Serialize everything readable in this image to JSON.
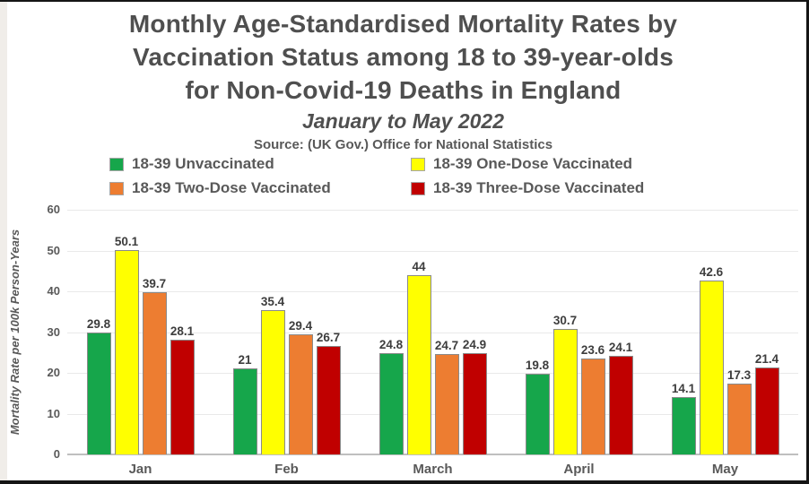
{
  "header": {
    "title_lines": [
      "Monthly Age-Standardised Mortality Rates by",
      "Vaccination Status among 18 to 39-year-olds",
      "for Non-Covid-19 Deaths in England"
    ],
    "subtitle": "January to May 2022",
    "source": "Source: (UK Gov.) Office for National Statistics"
  },
  "legend": {
    "items": [
      {
        "label": "18-39 Unvaccinated",
        "color": "#16a64b"
      },
      {
        "label": "18-39 One-Dose Vaccinated",
        "color": "#ffff00"
      },
      {
        "label": "18-39 Two-Dose Vaccinated",
        "color": "#ed7d31"
      },
      {
        "label": "18-39 Three-Dose Vaccinated",
        "color": "#c00000"
      }
    ]
  },
  "chart_data": {
    "type": "bar",
    "title": "Monthly Age-Standardised Mortality Rates by Vaccination Status among 18 to 39-year-olds for Non-Covid-19 Deaths in England",
    "subtitle": "January to May 2022",
    "source": "Source: (UK Gov.) Office for National Statistics",
    "categories": [
      "Jan",
      "Feb",
      "March",
      "April",
      "May"
    ],
    "series": [
      {
        "name": "18-39 Unvaccinated",
        "color": "#16a64b",
        "values": [
          29.8,
          21,
          24.8,
          19.8,
          14.1
        ],
        "labels": [
          "29.8",
          "21",
          "24.8",
          "19.8",
          "14.1"
        ]
      },
      {
        "name": "18-39 One-Dose Vaccinated",
        "color": "#ffff00",
        "values": [
          50.1,
          35.4,
          44,
          30.7,
          42.6
        ],
        "labels": [
          "50.1",
          "35.4",
          "44",
          "30.7",
          "42.6"
        ]
      },
      {
        "name": "18-39 Two-Dose Vaccinated",
        "color": "#ed7d31",
        "values": [
          39.7,
          29.4,
          24.7,
          23.6,
          17.3
        ],
        "labels": [
          "39.7",
          "29.4",
          "24.7",
          "23.6",
          "17.3"
        ]
      },
      {
        "name": "18-39 Three-Dose Vaccinated",
        "color": "#c00000",
        "values": [
          28.1,
          26.7,
          24.9,
          24.1,
          21.4
        ],
        "labels": [
          "28.1",
          "26.7",
          "24.9",
          "24.1",
          "21.4"
        ]
      }
    ],
    "xlabel": "",
    "ylabel": "Mortality Rate per 100k Person-Years",
    "ylim": [
      0,
      60
    ],
    "yticks": [
      0,
      10,
      20,
      30,
      40,
      50,
      60
    ],
    "grid": true,
    "legend_position": "top",
    "bar_border_color": "#8a8a8a",
    "value_label_color": "#3d3d3d"
  }
}
